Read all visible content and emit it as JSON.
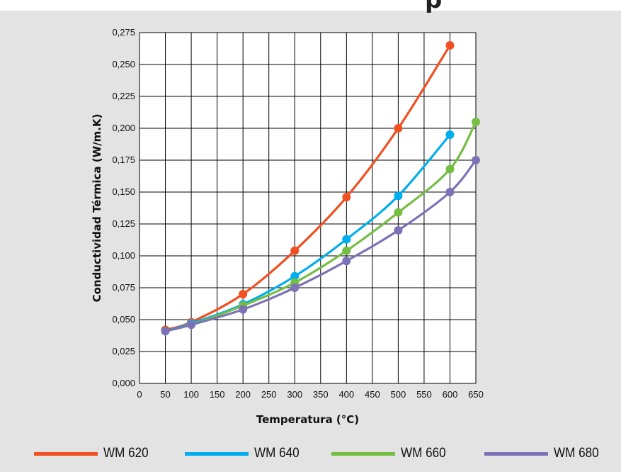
{
  "header": {
    "title_fragment": "p"
  },
  "colors": {
    "background": "#e3e3e3",
    "plot_bg": "#ffffff",
    "grid": "#000000"
  },
  "chart_data": {
    "type": "line",
    "xlabel": "Temperatura (°C)",
    "ylabel": "Conductividad Térmica (W/m.K)",
    "xlim": [
      0,
      650
    ],
    "ylim": [
      0,
      0.275
    ],
    "x_ticks": [
      "0",
      "50",
      "100",
      "150",
      "200",
      "250",
      "300",
      "350",
      "400",
      "450",
      "500",
      "550",
      "600",
      "650"
    ],
    "y_ticks": [
      "0,000",
      "0,025",
      "0,050",
      "0,075",
      "0,100",
      "0,125",
      "0,150",
      "0,175",
      "0,200",
      "0,225",
      "0,250",
      "0,275"
    ],
    "grid": true,
    "legend_position": "bottom",
    "series": [
      {
        "name": "WM 620",
        "color": "#f05022",
        "x": [
          50,
          100,
          200,
          300,
          400,
          500,
          600
        ],
        "y": [
          0.042,
          0.048,
          0.07,
          0.104,
          0.146,
          0.2,
          0.265
        ]
      },
      {
        "name": "WM 640",
        "color": "#00aeef",
        "x": [
          50,
          100,
          200,
          300,
          400,
          500,
          600
        ],
        "y": [
          0.041,
          0.047,
          0.062,
          0.084,
          0.113,
          0.147,
          0.195
        ]
      },
      {
        "name": "WM 660",
        "color": "#76bd43",
        "x": [
          50,
          100,
          200,
          300,
          400,
          500,
          600,
          650
        ],
        "y": [
          0.041,
          0.046,
          0.061,
          0.079,
          0.104,
          0.134,
          0.168,
          0.205
        ]
      },
      {
        "name": "WM 680",
        "color": "#7b73b5",
        "x": [
          50,
          100,
          200,
          300,
          400,
          500,
          600,
          650
        ],
        "y": [
          0.041,
          0.046,
          0.058,
          0.075,
          0.096,
          0.12,
          0.15,
          0.175
        ]
      }
    ]
  }
}
